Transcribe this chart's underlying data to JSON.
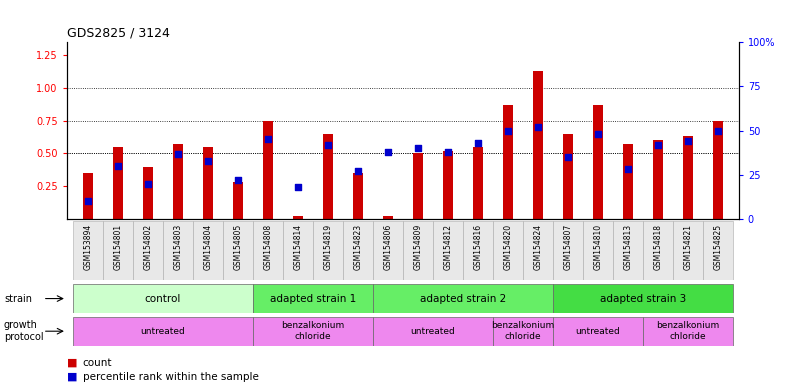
{
  "title": "GDS2825 / 3124",
  "samples": [
    "GSM153894",
    "GSM154801",
    "GSM154802",
    "GSM154803",
    "GSM154804",
    "GSM154805",
    "GSM154808",
    "GSM154814",
    "GSM154819",
    "GSM154823",
    "GSM154806",
    "GSM154809",
    "GSM154812",
    "GSM154816",
    "GSM154820",
    "GSM154824",
    "GSM154807",
    "GSM154810",
    "GSM154813",
    "GSM154818",
    "GSM154821",
    "GSM154825"
  ],
  "counts": [
    0.35,
    0.55,
    0.4,
    0.57,
    0.55,
    0.28,
    0.75,
    0.02,
    0.65,
    0.35,
    0.02,
    0.5,
    0.52,
    0.55,
    0.87,
    1.13,
    0.65,
    0.87,
    0.57,
    0.6,
    0.63,
    0.75
  ],
  "percentile_ranks": [
    10,
    30,
    20,
    37,
    33,
    22,
    45,
    18,
    42,
    27,
    38,
    40,
    38,
    43,
    50,
    52,
    35,
    48,
    28,
    42,
    44,
    50
  ],
  "strain_groups": [
    {
      "label": "control",
      "start": 0,
      "end": 6,
      "color": "#ccffcc"
    },
    {
      "label": "adapted strain 1",
      "start": 6,
      "end": 10,
      "color": "#66ee66"
    },
    {
      "label": "adapted strain 2",
      "start": 10,
      "end": 16,
      "color": "#66ee66"
    },
    {
      "label": "adapted strain 3",
      "start": 16,
      "end": 22,
      "color": "#44dd44"
    }
  ],
  "protocol_groups": [
    {
      "label": "untreated",
      "start": 0,
      "end": 6,
      "color": "#ee88ee"
    },
    {
      "label": "benzalkonium\nchloride",
      "start": 6,
      "end": 10,
      "color": "#ee88ee"
    },
    {
      "label": "untreated",
      "start": 10,
      "end": 14,
      "color": "#ee88ee"
    },
    {
      "label": "benzalkonium\nchloride",
      "start": 14,
      "end": 16,
      "color": "#ee88ee"
    },
    {
      "label": "untreated",
      "start": 16,
      "end": 19,
      "color": "#ee88ee"
    },
    {
      "label": "benzalkonium\nchloride",
      "start": 19,
      "end": 22,
      "color": "#ee88ee"
    }
  ],
  "bar_color": "#cc0000",
  "dot_color": "#0000cc",
  "ylim_left": [
    0.0,
    1.35
  ],
  "ylim_right": [
    0,
    100
  ],
  "yticks_left": [
    0.25,
    0.5,
    0.75,
    1.0,
    1.25
  ],
  "yticks_right": [
    0,
    25,
    50,
    75,
    100
  ],
  "ytick_labels_right": [
    "0",
    "25",
    "50",
    "75",
    "100%"
  ],
  "hgrid_values": [
    0.5,
    0.75,
    1.0
  ],
  "legend_count": "count",
  "legend_percentile": "percentile rank within the sample",
  "bar_width": 0.35
}
